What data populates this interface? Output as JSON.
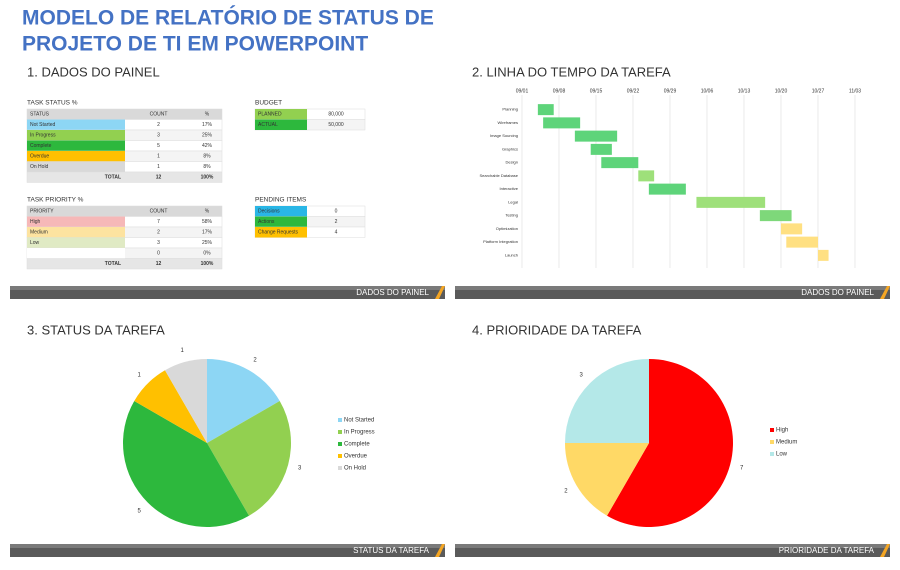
{
  "header": {
    "title_lines": [
      "MODELO DE RELATÓRIO DE STATUS DE",
      "PROJETO DE TI EM POWERPOINT"
    ]
  },
  "dashboard": {
    "heading": "1. DADOS DO PAINEL",
    "footer": "DADOS DO PAINEL",
    "task_status": {
      "title": "TASK STATUS %",
      "header": [
        "STATUS",
        "COUNT",
        "%"
      ],
      "rows": [
        [
          "Not Started",
          "2",
          "17%"
        ],
        [
          "In Progress",
          "3",
          "25%"
        ],
        [
          "Complete",
          "5",
          "42%"
        ],
        [
          "Overdue",
          "1",
          "8%"
        ],
        [
          "On Hold",
          "1",
          "8%"
        ]
      ],
      "total": [
        "TOTAL",
        "12",
        "100%"
      ],
      "colors": [
        "#8dd6f4",
        "#92d050",
        "#2db83d",
        "#ffc000",
        "#d9d9d9"
      ]
    },
    "task_priority": {
      "title": "TASK PRIORITY %",
      "header": [
        "PRIORITY",
        "COUNT",
        "%"
      ],
      "rows": [
        [
          "High",
          "7",
          "58%"
        ],
        [
          "Medium",
          "2",
          "17%"
        ],
        [
          "Low",
          "3",
          "25%"
        ],
        [
          null,
          "0",
          "0%"
        ]
      ],
      "total": [
        "TOTAL",
        "12",
        "100%"
      ],
      "colors": [
        "#f6b8b8",
        "#fde3a0",
        "#e0eac4",
        "#ffffff"
      ]
    },
    "budget": {
      "title": "BUDGET",
      "rows": [
        [
          "PLANNED",
          "80,000"
        ],
        [
          "ACTUAL",
          "50,000"
        ]
      ],
      "colors": [
        "#92d050",
        "#2db83d"
      ]
    },
    "pending": {
      "title": "PENDING ITEMS",
      "rows": [
        [
          "Decisions",
          "0"
        ],
        [
          "Actions",
          "2"
        ],
        [
          "Change Requests",
          "4"
        ]
      ],
      "colors": [
        "#29b6e6",
        "#2db83d",
        "#ffc000"
      ]
    }
  },
  "chart_data": [
    {
      "type": "gantt",
      "title": "2. LINHA DO TEMPO DA TAREFA",
      "footer": "DADOS DO PAINEL",
      "categories": [
        "Planning",
        "Wireframes",
        "Image Sourcing",
        "Graphics",
        "Design",
        "Searchable Database",
        "Interactive",
        "Legal",
        "Testing",
        "Optimization",
        "Platform Integration",
        "Launch"
      ],
      "starts": [
        3,
        4,
        10,
        13,
        15,
        22,
        24,
        33,
        45,
        49,
        50,
        56
      ],
      "durations": [
        3,
        7,
        8,
        4,
        7,
        3,
        7,
        13,
        6,
        4,
        6,
        2
      ],
      "colors": [
        "#5ed47a",
        "#5ed47a",
        "#5ed47a",
        "#5ed47a",
        "#5ed47a",
        "#9ee07a",
        "#5ed47a",
        "#9ee07a",
        "#7ed87a",
        "#ffe082",
        "#ffe082",
        "#ffe082"
      ],
      "xlim": [
        0,
        63
      ],
      "xticks": [
        {
          "value": 0,
          "label": "09/01"
        },
        {
          "value": 7,
          "label": "09/08"
        },
        {
          "value": 14,
          "label": "09/15"
        },
        {
          "value": 21,
          "label": "09/22"
        },
        {
          "value": 28,
          "label": "09/29"
        },
        {
          "value": 35,
          "label": "10/06"
        },
        {
          "value": 42,
          "label": "10/13"
        },
        {
          "value": 49,
          "label": "10/20"
        },
        {
          "value": 56,
          "label": "10/27"
        },
        {
          "value": 63,
          "label": "11/03"
        }
      ],
      "grid": true
    },
    {
      "type": "pie",
      "title": "3. STATUS DA TAREFA",
      "footer": "STATUS DA TAREFA",
      "categories": [
        "Not Started",
        "In Progress",
        "Complete",
        "Overdue",
        "On Hold"
      ],
      "values": [
        2,
        3,
        5,
        1,
        1
      ],
      "colors": [
        "#8dd6f4",
        "#92d050",
        "#2db83d",
        "#ffc000",
        "#d9d9d9"
      ]
    },
    {
      "type": "pie",
      "title": "4. PRIORIDADE DA TAREFA",
      "footer": "PRIORIDADE DA TAREFA",
      "categories": [
        "High",
        "Medium",
        "Low"
      ],
      "values": [
        7,
        2,
        3
      ],
      "colors": [
        "#ff0000",
        "#ffd966",
        "#b4e8e8"
      ]
    }
  ]
}
